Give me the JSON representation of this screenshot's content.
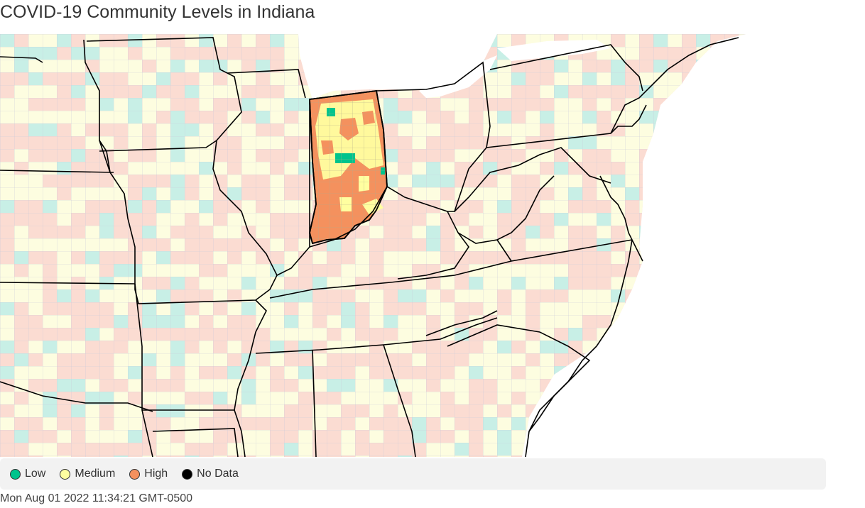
{
  "title": "COVID-19 Community Levels in Indiana",
  "map": {
    "focus_state": "Indiana",
    "colors": {
      "low": "#00c48c",
      "low_fill_light": "#c8efe6",
      "medium": "#ffffa0",
      "medium_fill_light": "#fdfde0",
      "high": "#f4915e",
      "high_fill_light": "#fbdcd2",
      "no_data": "#000000",
      "water": "#ffffff",
      "state_border": "#000000",
      "county_border": "#c9c9d9"
    }
  },
  "legend": {
    "items": [
      {
        "label": "Low",
        "color": "#00c48c"
      },
      {
        "label": "Medium",
        "color": "#ffffa0"
      },
      {
        "label": "High",
        "color": "#f4915e"
      },
      {
        "label": "No Data",
        "color": "#000000"
      }
    ]
  },
  "timestamp": "Mon Aug 01 2022 11:34:21 GMT-0500"
}
